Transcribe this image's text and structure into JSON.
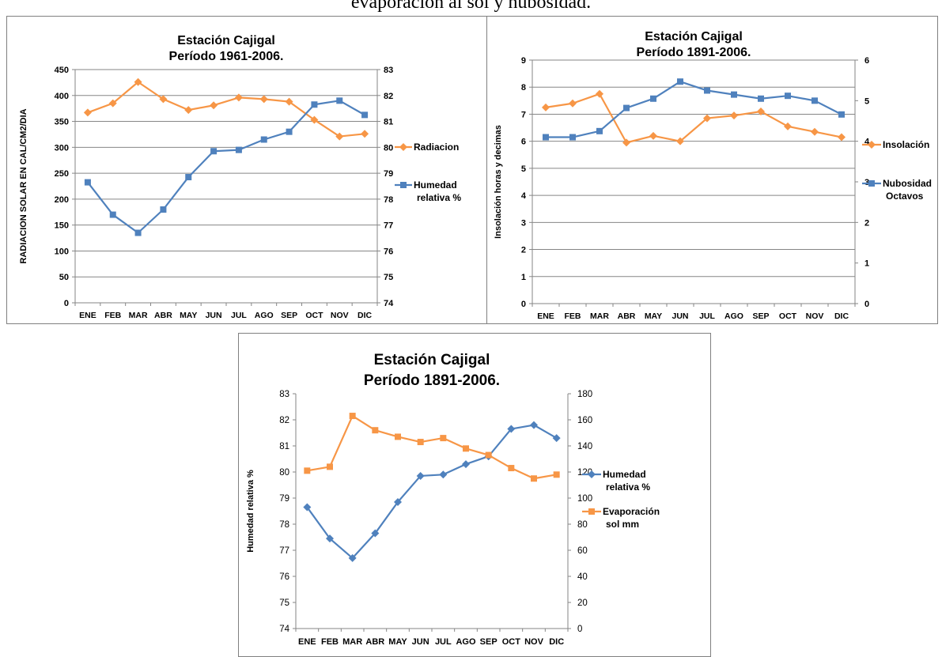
{
  "heading": "evaporación al sol y nubosidad.",
  "colors": {
    "orange": "#f79646",
    "blue": "#4f81bd",
    "grid": "#868686"
  },
  "chart_data": [
    {
      "type": "line",
      "title": [
        "Estación Cajigal",
        "Período 1961-2006."
      ],
      "categories": [
        "ENE",
        "FEB",
        "MAR",
        "ABR",
        "MAY",
        "JUN",
        "JUL",
        "AGO",
        "SEP",
        "OCT",
        "NOV",
        "DIC"
      ],
      "ylabel": "RADIACION SOLAR EN CAL/CM2/DIA",
      "y2label": "",
      "ylim": [
        0,
        450
      ],
      "ystep": 50,
      "y2lim": [
        74,
        83
      ],
      "y2step": 1,
      "grid": true,
      "legend": "right",
      "series": [
        {
          "name": "Radiacion",
          "axis": "left",
          "color": "#f79646",
          "marker": "diamond",
          "values": [
            367,
            385,
            426,
            393,
            372,
            381,
            396,
            393,
            388,
            353,
            321,
            326
          ]
        },
        {
          "name": "Humedad relativa %",
          "axis": "right",
          "color": "#4f81bd",
          "marker": "square",
          "values": [
            78.65,
            77.4,
            76.7,
            77.6,
            78.85,
            79.85,
            79.9,
            80.3,
            80.6,
            81.65,
            81.8,
            81.25
          ]
        }
      ]
    },
    {
      "type": "line",
      "title": [
        "Estación Cajigal",
        "Período 1891-2006."
      ],
      "categories": [
        "ENE",
        "FEB",
        "MAR",
        "ABR",
        "MAY",
        "JUN",
        "JUL",
        "AGO",
        "SEP",
        "OCT",
        "NOV",
        "DIC"
      ],
      "ylabel": "Insolación horas y decimas",
      "y2label": "",
      "ylim": [
        0,
        9
      ],
      "ystep": 1,
      "y2lim": [
        0,
        6
      ],
      "y2step": 1,
      "grid": true,
      "legend": "right",
      "series": [
        {
          "name": "Insolación",
          "axis": "left",
          "color": "#f79646",
          "marker": "diamond",
          "values": [
            7.25,
            7.4,
            7.75,
            5.95,
            6.2,
            6.0,
            6.85,
            6.95,
            7.1,
            6.55,
            6.35,
            6.15
          ]
        },
        {
          "name": "Nubosidad Octavos",
          "axis": "right",
          "color": "#4f81bd",
          "marker": "square",
          "values": [
            4.1,
            4.1,
            4.25,
            4.82,
            5.05,
            5.47,
            5.25,
            5.15,
            5.05,
            5.12,
            5.0,
            4.66
          ]
        }
      ]
    },
    {
      "type": "line",
      "title": [
        "Estación Cajigal",
        "Período 1891-2006."
      ],
      "categories": [
        "ENE",
        "FEB",
        "MAR",
        "ABR",
        "MAY",
        "JUN",
        "JUL",
        "AGO",
        "SEP",
        "OCT",
        "NOV",
        "DIC"
      ],
      "ylabel": "Humedad relativa %",
      "y2label": "",
      "ylim": [
        74,
        83
      ],
      "ystep": 1,
      "y2lim": [
        0,
        180
      ],
      "y2step": 20,
      "grid": false,
      "legend": "right",
      "series": [
        {
          "name": "Humedad relativa %",
          "axis": "left",
          "color": "#4f81bd",
          "marker": "diamond",
          "values": [
            78.65,
            77.45,
            76.7,
            77.65,
            78.85,
            79.85,
            79.9,
            80.3,
            80.6,
            81.65,
            81.8,
            81.3
          ]
        },
        {
          "name": "Evaporación sol mm",
          "axis": "right",
          "color": "#f79646",
          "marker": "square",
          "values": [
            121,
            124,
            163,
            152,
            147,
            143,
            146,
            138,
            133,
            123,
            115,
            118
          ]
        }
      ]
    }
  ]
}
